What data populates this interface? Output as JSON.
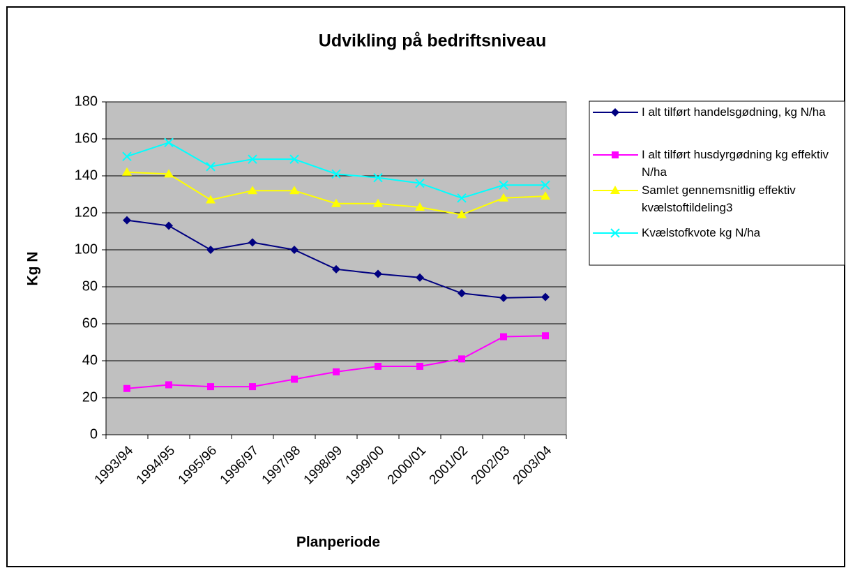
{
  "chart_data": {
    "type": "line",
    "title": "Udvikling på bedriftsniveau",
    "x_label": "Planperiode",
    "y_label": "Kg N",
    "categories": [
      "1993/94",
      "1994/95",
      "1995/96",
      "1996/97",
      "1997/98",
      "1998/99",
      "1999/00",
      "2000/01",
      "2001/02",
      "2002/03",
      "2003/04"
    ],
    "series": [
      {
        "name": "I alt tilført handelsgødning, kg N/ha",
        "color": "#000080",
        "marker": "diamond",
        "values": [
          116,
          113,
          100,
          104,
          100,
          89.5,
          87,
          85,
          76.5,
          74,
          74.5
        ]
      },
      {
        "name": "I alt tilført husdyrgødning kg effektiv N/ha",
        "color": "#ff00ff",
        "marker": "square",
        "values": [
          25,
          27,
          26,
          26,
          30,
          34,
          37,
          37,
          41,
          53,
          53.5
        ]
      },
      {
        "name": "Samlet gennemsnitlig effektiv kvælstoftildeling3",
        "color": "#ffff00",
        "marker": "triangle",
        "values": [
          142,
          141,
          127,
          132,
          132,
          125,
          125,
          123,
          119,
          128,
          129
        ]
      },
      {
        "name": "Kvælstofkvote kg N/ha",
        "color": "#00ffff",
        "marker": "x",
        "values": [
          150.5,
          158,
          145,
          149,
          149,
          141,
          139,
          136,
          128,
          135,
          135
        ]
      }
    ],
    "ylim": [
      0,
      180
    ],
    "yticks": [
      0,
      20,
      40,
      60,
      80,
      100,
      120,
      140,
      160,
      180
    ],
    "grid": true,
    "legend": "right",
    "plot_background": "#c0c0c0"
  }
}
